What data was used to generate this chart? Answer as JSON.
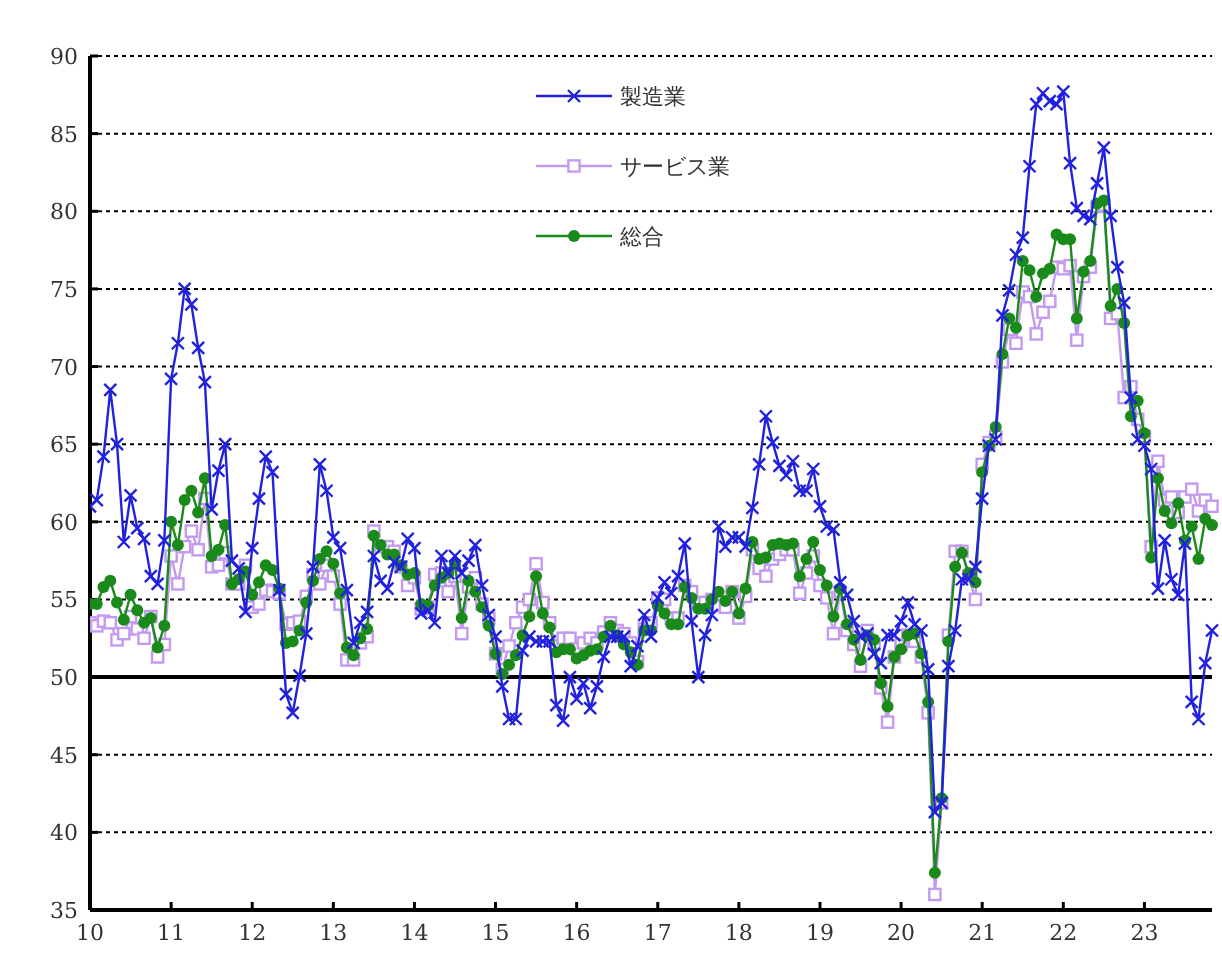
{
  "chart_data": {
    "type": "line",
    "legend": "top",
    "grid": "y",
    "xlim": [
      "2010-01",
      "2023-11"
    ],
    "ylim": [
      35,
      90
    ],
    "yticks": [
      35,
      40,
      45,
      50,
      55,
      60,
      65,
      70,
      75,
      80,
      85,
      90
    ],
    "xticks": [
      {
        "value": "2010-01",
        "label": "10"
      },
      {
        "value": "2011-01",
        "label": "11"
      },
      {
        "value": "2012-01",
        "label": "12"
      },
      {
        "value": "2013-01",
        "label": "13"
      },
      {
        "value": "2014-01",
        "label": "14"
      },
      {
        "value": "2015-01",
        "label": "15"
      },
      {
        "value": "2016-01",
        "label": "16"
      },
      {
        "value": "2017-01",
        "label": "17"
      },
      {
        "value": "2018-01",
        "label": "18"
      },
      {
        "value": "2019-01",
        "label": "19"
      },
      {
        "value": "2020-01",
        "label": "20"
      },
      {
        "value": "2021-01",
        "label": "21"
      },
      {
        "value": "2022-01",
        "label": "22"
      },
      {
        "value": "2023-01",
        "label": "23"
      }
    ],
    "ref_lines": [
      {
        "axis": "y",
        "value": 50,
        "color": "#000000"
      }
    ],
    "x": [
      "2010-01",
      "2010-02",
      "2010-03",
      "2010-04",
      "2010-05",
      "2010-06",
      "2010-07",
      "2010-08",
      "2010-09",
      "2010-10",
      "2010-11",
      "2010-12",
      "2011-01",
      "2011-02",
      "2011-03",
      "2011-04",
      "2011-05",
      "2011-06",
      "2011-07",
      "2011-08",
      "2011-09",
      "2011-10",
      "2011-11",
      "2011-12",
      "2012-01",
      "2012-02",
      "2012-03",
      "2012-04",
      "2012-05",
      "2012-06",
      "2012-07",
      "2012-08",
      "2012-09",
      "2012-10",
      "2012-11",
      "2012-12",
      "2013-01",
      "2013-02",
      "2013-03",
      "2013-04",
      "2013-05",
      "2013-06",
      "2013-07",
      "2013-08",
      "2013-09",
      "2013-10",
      "2013-11",
      "2013-12",
      "2014-01",
      "2014-02",
      "2014-03",
      "2014-04",
      "2014-05",
      "2014-06",
      "2014-07",
      "2014-08",
      "2014-09",
      "2014-10",
      "2014-11",
      "2014-12",
      "2015-01",
      "2015-02",
      "2015-03",
      "2015-04",
      "2015-05",
      "2015-06",
      "2015-07",
      "2015-08",
      "2015-09",
      "2015-10",
      "2015-11",
      "2015-12",
      "2016-01",
      "2016-02",
      "2016-03",
      "2016-04",
      "2016-05",
      "2016-06",
      "2016-07",
      "2016-08",
      "2016-09",
      "2016-10",
      "2016-11",
      "2016-12",
      "2017-01",
      "2017-02",
      "2017-03",
      "2017-04",
      "2017-05",
      "2017-06",
      "2017-07",
      "2017-08",
      "2017-09",
      "2017-10",
      "2017-11",
      "2017-12",
      "2018-01",
      "2018-02",
      "2018-03",
      "2018-04",
      "2018-05",
      "2018-06",
      "2018-07",
      "2018-08",
      "2018-09",
      "2018-10",
      "2018-11",
      "2018-12",
      "2019-01",
      "2019-02",
      "2019-03",
      "2019-04",
      "2019-05",
      "2019-06",
      "2019-07",
      "2019-08",
      "2019-09",
      "2019-10",
      "2019-11",
      "2019-12",
      "2020-01",
      "2020-02",
      "2020-03",
      "2020-04",
      "2020-05",
      "2020-06",
      "2020-07",
      "2020-08",
      "2020-09",
      "2020-10",
      "2020-11",
      "2020-12",
      "2021-01",
      "2021-02",
      "2021-03",
      "2021-04",
      "2021-05",
      "2021-06",
      "2021-07",
      "2021-08",
      "2021-09",
      "2021-10",
      "2021-11",
      "2021-12",
      "2022-01",
      "2022-02",
      "2022-03",
      "2022-04",
      "2022-05",
      "2022-06",
      "2022-07",
      "2022-08",
      "2022-09",
      "2022-10",
      "2022-11",
      "2022-12",
      "2023-01",
      "2023-02",
      "2023-03",
      "2023-04",
      "2023-05",
      "2023-06",
      "2023-07",
      "2023-08",
      "2023-09",
      "2023-10",
      "2023-11"
    ],
    "series": [
      {
        "name": "製造業",
        "color": "#2222dd",
        "marker": "cross",
        "values": [
          61,
          61.4,
          64.2,
          68.5,
          65,
          58.7,
          61.7,
          59.6,
          58.9,
          56.5,
          56,
          58.8,
          69.2,
          71.5,
          75,
          74,
          71.2,
          69,
          60.8,
          63.3,
          65,
          57.5,
          57,
          54.2,
          58.3,
          61.5,
          64.2,
          63.2,
          55.6,
          48.9,
          47.7,
          50.1,
          52.8,
          57.1,
          63.7,
          62,
          59,
          58.3,
          55.6,
          52.2,
          53.5,
          54.2,
          57.8,
          56.2,
          55.7,
          57.4,
          57.1,
          58.9,
          58.3,
          54.1,
          54.3,
          53.5,
          57.8,
          56.7,
          57.8,
          56.7,
          57.5,
          58.5,
          55.9,
          54,
          52.6,
          49.4,
          47.3,
          47.3,
          51.7,
          52.6,
          52.3,
          52.3,
          52.3,
          48.2,
          47.2,
          50,
          48.6,
          49.6,
          48,
          49.4,
          51.3,
          52.6,
          52.6,
          52.6,
          50.7,
          52,
          54,
          52.6,
          55.1,
          56.1,
          55.4,
          56.5,
          58.6,
          53.6,
          50,
          52.7,
          54,
          59.7,
          58.4,
          59,
          59,
          58.4,
          60.9,
          63.7,
          66.8,
          65.1,
          63.6,
          63,
          63.9,
          62,
          62,
          63.4,
          61,
          59.7,
          59.5,
          56.1,
          55.3,
          53.6,
          52.6,
          52.8,
          51.5,
          50.9,
          52.7,
          52.7,
          53.6,
          54.8,
          53.4,
          53,
          50.5,
          41.3,
          41.9,
          50.7,
          53,
          56.3,
          56.3,
          57.1,
          61.5,
          64.9,
          65.3,
          73.3,
          74.9,
          77.2,
          78.3,
          82.9,
          86.9,
          87.6,
          87.1,
          86.9,
          87.7,
          83.1,
          80.2,
          79.7,
          79.5,
          81.8,
          84.1,
          79.7,
          76.4,
          74.1,
          68,
          65.3,
          64.9,
          63.4,
          55.7,
          58.8,
          56.3,
          55.3,
          58.6,
          48.4,
          47.3,
          50.9,
          53
        ]
      },
      {
        "name": "サービス業",
        "color": "#c49af0",
        "marker": "square",
        "values": [
          53.5,
          53.3,
          53.6,
          53.5,
          52.4,
          52.8,
          53.9,
          53.1,
          52.5,
          53.9,
          51.3,
          52.1,
          57.8,
          56,
          58.4,
          59.4,
          58.2,
          61.5,
          57.1,
          57.2,
          58,
          56,
          56,
          57.2,
          54.5,
          54.7,
          55.6,
          55.5,
          55.4,
          53.4,
          53.5,
          53.6,
          55.2,
          56.6,
          56,
          57.2,
          56.5,
          54.7,
          51.1,
          51.1,
          52.2,
          52.6,
          59.4,
          58.4,
          58.4,
          58.1,
          57.1,
          55.9,
          56.4,
          54.4,
          54.5,
          56.6,
          56.7,
          55.5,
          56.5,
          52.8,
          55.8,
          56.4,
          54.7,
          53.8,
          51.5,
          50.5,
          52,
          53.5,
          54.5,
          55,
          57.3,
          54.8,
          53.5,
          52,
          52.5,
          52.5,
          51.8,
          52.2,
          52.5,
          52.2,
          52.9,
          53.5,
          53,
          52.8,
          52.2,
          51,
          53.1,
          53.5,
          55.1,
          55,
          53.8,
          53.8,
          55.9,
          55.5,
          54.8,
          54.8,
          55,
          54.6,
          54.5,
          55.5,
          53.8,
          55.2,
          58.2,
          57,
          56.5,
          57.6,
          57.9,
          58.2,
          58.2,
          55.4,
          56.7,
          57.8,
          55.9,
          55.1,
          52.8,
          55.5,
          53,
          52.1,
          50.7,
          53,
          52.1,
          49.3,
          47.1,
          51.3,
          52.1,
          52.7,
          52.3,
          51.3,
          47.7,
          36,
          41.9,
          52.7,
          58.1,
          58.1,
          56.5,
          55,
          63.7,
          65.1,
          65.5,
          70.3,
          72.4,
          71.5,
          74.8,
          74.5,
          72.1,
          73.5,
          74.2,
          76.4,
          76.3,
          76.5,
          71.7,
          75.8,
          76.4,
          80.3,
          80.4,
          73.1,
          73.4,
          68,
          68.7,
          66.6,
          65.5,
          58.4,
          63.9,
          61.4,
          61.6,
          60.6,
          61.6,
          62.1,
          60.7,
          61.4,
          61
        ]
      },
      {
        "name": "総合",
        "color": "#1a8a1a",
        "marker": "circle",
        "values": [
          54.7,
          54.7,
          55.8,
          56.2,
          54.8,
          53.7,
          55.3,
          54.3,
          53.5,
          53.8,
          51.9,
          53.3,
          60,
          58.5,
          61.4,
          62,
          60.6,
          62.8,
          57.8,
          58.2,
          59.8,
          56,
          56.3,
          56.8,
          55.3,
          56.1,
          57.2,
          56.9,
          55.7,
          52.2,
          52.3,
          53,
          54.8,
          56.2,
          57.6,
          58.1,
          57.3,
          55.4,
          51.9,
          51.4,
          52.5,
          53.1,
          59.1,
          58.5,
          57.9,
          57.9,
          57.2,
          56.6,
          56.7,
          54.7,
          54.6,
          55.9,
          56.4,
          56.7,
          57.3,
          53.8,
          56.2,
          55.5,
          54.5,
          53.3,
          51.5,
          50.2,
          50.8,
          51.4,
          52.7,
          53.9,
          56.5,
          54.1,
          53.2,
          51.6,
          51.8,
          51.8,
          51.2,
          51.4,
          51.7,
          51.8,
          52.6,
          53.3,
          52.7,
          52.1,
          51.6,
          50.8,
          53,
          53,
          54.6,
          54.1,
          53.4,
          53.4,
          55.8,
          55.1,
          54.4,
          54.4,
          55,
          55.5,
          54.9,
          55.5,
          54.1,
          55.7,
          58.7,
          57.6,
          57.7,
          58.5,
          58.6,
          58.5,
          58.6,
          56.5,
          57.6,
          58.7,
          56.9,
          55.9,
          53.9,
          55.7,
          53.4,
          52.4,
          51.1,
          52.7,
          52.4,
          49.6,
          48.1,
          51.3,
          51.8,
          52.7,
          52.8,
          51.5,
          48.4,
          37.4,
          42.2,
          52.3,
          57.1,
          58,
          56.7,
          56.1,
          63.2,
          64.9,
          66.1,
          70.8,
          73.1,
          72.5,
          76.8,
          76.2,
          74.5,
          76,
          76.3,
          78.5,
          78.2,
          78.2,
          73.1,
          76.1,
          76.8,
          80.5,
          80.7,
          73.9,
          75,
          72.8,
          66.8,
          67.8,
          65.7,
          57.7,
          62.8,
          60.7,
          59.9,
          61.2,
          58.8,
          59.7,
          57.6,
          60.2,
          59.8
        ]
      }
    ]
  }
}
